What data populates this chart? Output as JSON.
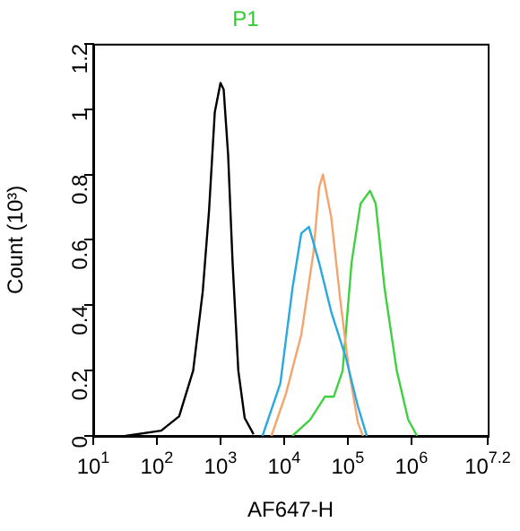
{
  "chart_data": {
    "type": "line",
    "title": "P1",
    "xlabel": "AF647-H",
    "ylabel": "Count (10³)",
    "log": "x",
    "xlim": [
      10,
      15848932
    ],
    "xticks": [
      {
        "value": 10,
        "label": "10$^{1}$"
      },
      {
        "value": 100,
        "label": "10$^{2}$"
      },
      {
        "value": 1000,
        "label": "10$^{3}$"
      },
      {
        "value": 10000,
        "label": "10$^{4}$"
      },
      {
        "value": 100000,
        "label": "10$^{5}$"
      },
      {
        "value": 1000000,
        "label": "10$^{6}$"
      },
      {
        "value": 15848932,
        "label": "10$^{7.2}$"
      }
    ],
    "ylim": [
      0,
      1.2
    ],
    "yticks": [
      0,
      0.2,
      0.4,
      0.6,
      0.8,
      1,
      1.2
    ],
    "grid": false,
    "legend": false,
    "marker": "none",
    "line_style": "solid",
    "series": [
      {
        "color": "#000000",
        "x": [
          32,
          117,
          224,
          372,
          525,
          661,
          813,
          1000,
          1122,
          1318,
          1549,
          1905,
          2399,
          3311
        ],
        "values": [
          0,
          0.016,
          0.06,
          0.2,
          0.44,
          0.69,
          0.99,
          1.08,
          1.06,
          0.86,
          0.53,
          0.2,
          0.055,
          0.005
        ]
      },
      {
        "color": "#2aa8e0",
        "x": [
          4571,
          8710,
          13490,
          18620,
          24550,
          35480,
          54950,
          93330,
          144500,
          199500
        ],
        "values": [
          0,
          0.16,
          0.45,
          0.62,
          0.64,
          0.53,
          0.38,
          0.24,
          0.09,
          0
        ]
      },
      {
        "color": "#f4a46c",
        "x": [
          6310,
          10720,
          18620,
          28840,
          35480,
          40740,
          54950,
          75860,
          104700,
          144500,
          173800
        ],
        "values": [
          0,
          0.13,
          0.31,
          0.56,
          0.76,
          0.8,
          0.67,
          0.42,
          0.2,
          0.04,
          0
        ]
      },
      {
        "color": "#40d040",
        "x": [
          13490,
          25700,
          43650,
          60260,
          83180,
          114800,
          158500,
          223900,
          275400,
          380200,
          588800,
          891300,
          1230000
        ],
        "values": [
          0,
          0.05,
          0.12,
          0.12,
          0.2,
          0.53,
          0.71,
          0.75,
          0.71,
          0.45,
          0.2,
          0.05,
          0
        ]
      }
    ]
  }
}
